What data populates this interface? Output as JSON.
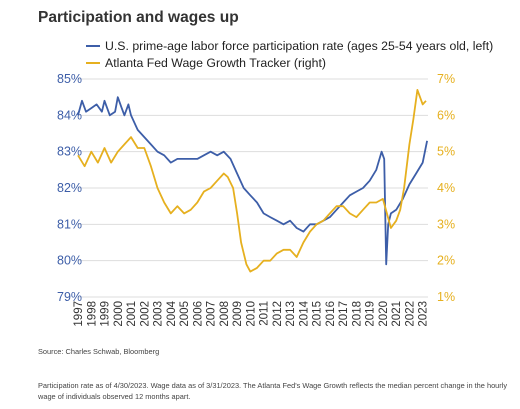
{
  "title": "Participation and wages up",
  "source": "Source: Charles Schwab, Bloomberg",
  "note": "Participation rate as of 4/30/2023. Wage data as of 3/31/2023. The Atlanta Fed's Wage Growth reflects the median percent change in the hourly wage of individuals observed 12 months apart.",
  "colors": {
    "participation": "#3d5ea8",
    "wage": "#e6b01f",
    "grid": "#dddddd"
  },
  "chart_data": {
    "type": "line",
    "title": "Participation and wages up",
    "grid": true,
    "legend_placement": "top-left",
    "x_ticks": [
      "1997",
      "1998",
      "1999",
      "2000",
      "2001",
      "2002",
      "2003",
      "2004",
      "2005",
      "2006",
      "2007",
      "2008",
      "2009",
      "2010",
      "2011",
      "2012",
      "2013",
      "2014",
      "2015",
      "2016",
      "2017",
      "2018",
      "2019",
      "2020",
      "2021",
      "2022",
      "2023"
    ],
    "xlim": [
      1997,
      2023.4
    ],
    "left_axis": {
      "ticks": [
        "79%",
        "80%",
        "81%",
        "82%",
        "83%",
        "84%",
        "85%"
      ],
      "ylim": [
        79,
        85
      ]
    },
    "right_axis": {
      "ticks": [
        "1%",
        "2%",
        "3%",
        "4%",
        "5%",
        "6%",
        "7%"
      ],
      "ylim": [
        1,
        7
      ]
    },
    "series": [
      {
        "name": "U.S. prime-age labor force participation rate (ages 25-54 years old, left)",
        "axis": "left",
        "x": [
          1997,
          1997.3,
          1997.6,
          1998,
          1998.4,
          1998.8,
          1999,
          1999.4,
          1999.8,
          2000,
          2000.3,
          2000.5,
          2000.8,
          2001,
          2001.5,
          2002,
          2002.5,
          2003,
          2003.5,
          2004,
          2004.5,
          2005,
          2005.5,
          2006,
          2006.5,
          2007,
          2007.5,
          2008,
          2008.5,
          2009,
          2009.5,
          2010,
          2010.5,
          2011,
          2011.5,
          2012,
          2012.5,
          2013,
          2013.5,
          2014,
          2014.5,
          2015,
          2015.5,
          2016,
          2016.5,
          2017,
          2017.5,
          2018,
          2018.5,
          2019,
          2019.5,
          2019.9,
          2020.1,
          2020.25,
          2020.4,
          2020.6,
          2021,
          2021.5,
          2022,
          2022.5,
          2023,
          2023.33
        ],
        "y": [
          84.0,
          84.4,
          84.1,
          84.2,
          84.3,
          84.1,
          84.4,
          84.0,
          84.1,
          84.5,
          84.2,
          84.0,
          84.3,
          84.0,
          83.6,
          83.4,
          83.2,
          83.0,
          82.9,
          82.7,
          82.8,
          82.8,
          82.8,
          82.8,
          82.9,
          83.0,
          82.9,
          83.0,
          82.8,
          82.4,
          82.0,
          81.8,
          81.6,
          81.3,
          81.2,
          81.1,
          81.0,
          81.1,
          80.9,
          80.8,
          81.0,
          81.0,
          81.1,
          81.2,
          81.4,
          81.6,
          81.8,
          81.9,
          82.0,
          82.2,
          82.5,
          83.0,
          82.8,
          79.9,
          81.0,
          81.3,
          81.4,
          81.7,
          82.1,
          82.4,
          82.7,
          83.3
        ]
      },
      {
        "name": "Atlanta Fed Wage Growth Tracker (right)",
        "axis": "right",
        "x": [
          1997,
          1997.5,
          1998,
          1998.5,
          1999,
          1999.5,
          2000,
          2000.5,
          2001,
          2001.5,
          2002,
          2002.5,
          2003,
          2003.5,
          2004,
          2004.5,
          2005,
          2005.5,
          2006,
          2006.5,
          2007,
          2007.5,
          2008,
          2008.3,
          2008.7,
          2009,
          2009.3,
          2009.7,
          2010,
          2010.5,
          2011,
          2011.5,
          2012,
          2012.5,
          2013,
          2013.5,
          2014,
          2014.5,
          2015,
          2015.5,
          2016,
          2016.5,
          2017,
          2017.5,
          2018,
          2018.5,
          2019,
          2019.5,
          2020,
          2020.3,
          2020.6,
          2021,
          2021.3,
          2021.6,
          2022,
          2022.3,
          2022.6,
          2023,
          2023.25
        ],
        "y": [
          4.9,
          4.6,
          5.0,
          4.7,
          5.1,
          4.7,
          5.0,
          5.2,
          5.4,
          5.1,
          5.1,
          4.6,
          4.0,
          3.6,
          3.3,
          3.5,
          3.3,
          3.4,
          3.6,
          3.9,
          4.0,
          4.2,
          4.4,
          4.3,
          4.0,
          3.3,
          2.5,
          1.9,
          1.7,
          1.8,
          2.0,
          2.0,
          2.2,
          2.3,
          2.3,
          2.1,
          2.5,
          2.8,
          3.0,
          3.1,
          3.3,
          3.5,
          3.5,
          3.3,
          3.2,
          3.4,
          3.6,
          3.6,
          3.7,
          3.3,
          2.9,
          3.1,
          3.4,
          4.0,
          5.2,
          5.9,
          6.7,
          6.3,
          6.4
        ]
      }
    ]
  }
}
